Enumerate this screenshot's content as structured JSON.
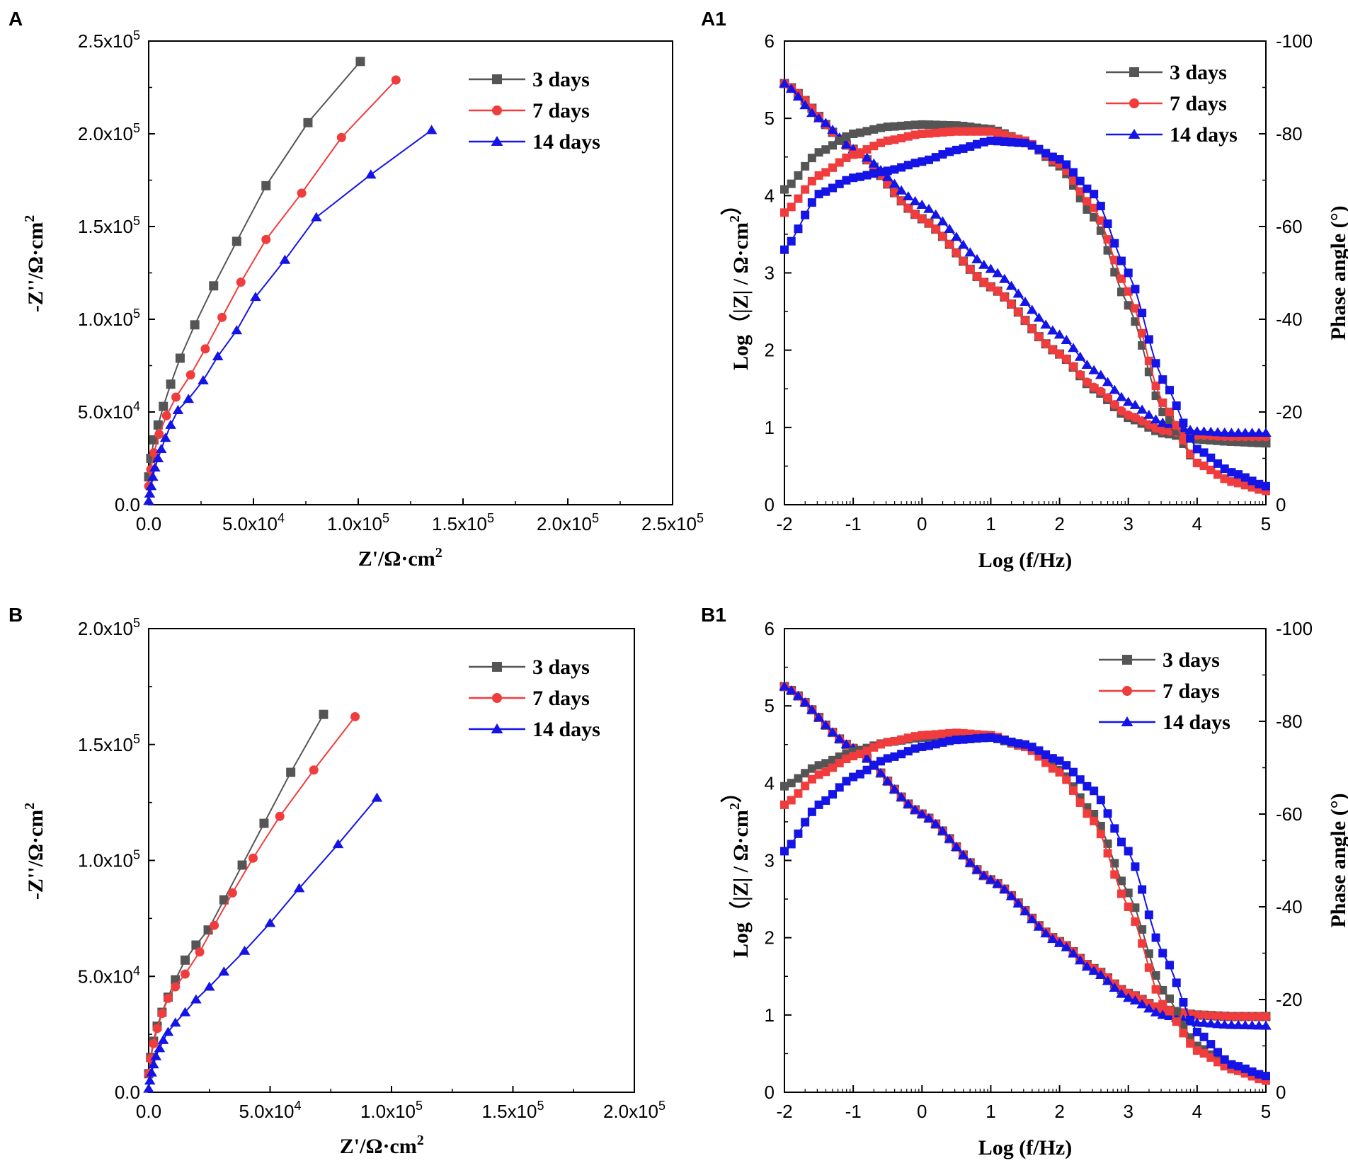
{
  "colors": {
    "s3": "#555555",
    "s7": "#f03c3c",
    "s14": "#1414e6"
  },
  "chart_data": [
    {
      "id": "A",
      "panel_label": "A",
      "type": "scatter",
      "xlabel": "Z'/Ω·cm²",
      "ylabel": "-Z''/Ω·cm²",
      "xlim": [
        0,
        250000
      ],
      "ylim": [
        0,
        250000
      ],
      "xticks": [
        "0.0",
        "5.0x10⁴",
        "1.0x10⁵",
        "1.5x10⁵",
        "2.0x10⁵",
        "2.5x10⁵"
      ],
      "yticks": [
        "0.0",
        "5.0x10⁴",
        "1.0x10⁵",
        "1.5x10⁵",
        "2.0x10⁵",
        "2.5x10⁵"
      ],
      "legend": [
        "3 days",
        "7 days",
        "14 days"
      ],
      "series": [
        {
          "name": "3 days",
          "x": [
            0,
            1000,
            2500,
            4500,
            7000,
            10500,
            15000,
            22000,
            31000,
            42000,
            56000,
            76000,
            101000
          ],
          "y": [
            15000,
            25000,
            35000,
            43000,
            53000,
            65000,
            79000,
            97000,
            118000,
            142000,
            172000,
            206000,
            239000
          ]
        },
        {
          "name": "7 days",
          "x": [
            0,
            1000,
            2500,
            5000,
            8500,
            13000,
            20000,
            27000,
            35000,
            44000,
            56000,
            73000,
            92000,
            118000
          ],
          "y": [
            10000,
            19000,
            28000,
            38000,
            48000,
            58000,
            70000,
            84000,
            101000,
            120000,
            143000,
            168000,
            198000,
            229000
          ]
        },
        {
          "name": "14 days",
          "x": [
            0,
            500,
            1200,
            2000,
            3000,
            4500,
            6000,
            8000,
            10500,
            14000,
            19000,
            26000,
            33000,
            42000,
            51000,
            65000,
            80000,
            106000,
            135000
          ],
          "y": [
            2000,
            6000,
            10000,
            15000,
            20000,
            25000,
            30000,
            36000,
            43000,
            51000,
            57000,
            67000,
            80000,
            94000,
            112000,
            132000,
            155000,
            178000,
            202000
          ]
        }
      ]
    },
    {
      "id": "A1",
      "panel_label": "A1",
      "type": "scatter",
      "xlabel": "Log (f/Hz)",
      "ylabel": "Log（|Z| / Ω·cm²）",
      "y2label": "Phase angle (°)",
      "xlim": [
        -2,
        5
      ],
      "ylim": [
        0,
        6
      ],
      "y2lim": [
        0,
        -100
      ],
      "xticks": [
        "-2",
        "-1",
        "0",
        "1",
        "2",
        "3",
        "4",
        "5"
      ],
      "yticks": [
        "0",
        "1",
        "2",
        "3",
        "4",
        "5",
        "6"
      ],
      "y2ticks": [
        "0",
        "-20",
        "-40",
        "-60",
        "-80",
        "-100"
      ],
      "legend": [
        "3 days",
        "7 days",
        "14 days"
      ],
      "impedance_series": [
        {
          "name": "3 days",
          "x": [
            -2,
            -1,
            0,
            1,
            2,
            2.5,
            3,
            3.5,
            4,
            4.5,
            5
          ],
          "y": [
            5.45,
            4.6,
            3.7,
            2.82,
            1.95,
            1.5,
            1.13,
            0.93,
            0.85,
            0.82,
            0.8
          ]
        },
        {
          "name": "7 days",
          "x": [
            -2,
            -1,
            0,
            1,
            2,
            2.5,
            3,
            3.5,
            4,
            4.5,
            5
          ],
          "y": [
            5.45,
            4.6,
            3.7,
            2.82,
            1.95,
            1.52,
            1.16,
            0.96,
            0.9,
            0.88,
            0.88
          ]
        },
        {
          "name": "14 days",
          "x": [
            -2,
            -1.5,
            -1,
            0,
            1,
            2,
            2.5,
            3,
            3.5,
            4,
            4.5,
            5
          ],
          "y": [
            5.45,
            5.0,
            4.6,
            3.88,
            3.05,
            2.2,
            1.74,
            1.33,
            1.06,
            0.95,
            0.93,
            0.93
          ]
        }
      ],
      "phase_series": [
        {
          "name": "3 days",
          "x": [
            -2,
            -1.5,
            -1,
            -0.5,
            0,
            0.5,
            1,
            1.5,
            2,
            2.5,
            3,
            3.5,
            4,
            4.5,
            5
          ],
          "y": [
            -68,
            -76,
            -80,
            -81.5,
            -82,
            -81.8,
            -81,
            -78.5,
            -73,
            -62,
            -43,
            -20,
            -9,
            -5,
            -3
          ]
        },
        {
          "name": "7 days",
          "x": [
            -2,
            -1.5,
            -1,
            -0.5,
            0,
            0.5,
            1,
            1.5,
            2,
            2.5,
            3,
            3.5,
            4,
            4.5,
            5
          ],
          "y": [
            -63,
            -71,
            -75.5,
            -78.5,
            -80,
            -80.5,
            -80.5,
            -78.5,
            -73.5,
            -64,
            -46,
            -22,
            -9,
            -5,
            -3
          ]
        },
        {
          "name": "14 days",
          "x": [
            -2,
            -1.5,
            -1,
            -0.5,
            0,
            0.5,
            1,
            1.5,
            2,
            2.5,
            3,
            3.5,
            4,
            4.5,
            5
          ],
          "y": [
            -55,
            -67,
            -70.5,
            -72,
            -74,
            -76.5,
            -78.5,
            -78,
            -74.5,
            -67,
            -50,
            -27,
            -12,
            -7,
            -4
          ]
        }
      ]
    },
    {
      "id": "B",
      "panel_label": "B",
      "type": "scatter",
      "xlabel": "Z'/Ω·cm²",
      "ylabel": "-Z''/Ω·cm²",
      "xlim": [
        0,
        200000
      ],
      "ylim": [
        0,
        200000
      ],
      "xticks": [
        "0.0",
        "5.0x10⁴",
        "1.0x10⁵",
        "1.5x10⁵",
        "2.0x10⁵"
      ],
      "yticks": [
        "0.0",
        "5.0x10⁴",
        "1.0x10⁵",
        "1.5x10⁵",
        "2.0x10⁵"
      ],
      "legend": [
        "3 days",
        "7 days",
        "14 days"
      ],
      "series": [
        {
          "name": "3 days",
          "x": [
            0,
            800,
            2000,
            3500,
            5500,
            8000,
            11000,
            15000,
            19500,
            24500,
            31000,
            38500,
            47500,
            58500,
            72000
          ],
          "y": [
            8000,
            15000,
            22000,
            28500,
            34500,
            41000,
            48500,
            57000,
            63500,
            70000,
            83000,
            98000,
            116000,
            138000,
            163000
          ]
        },
        {
          "name": "7 days",
          "x": [
            0,
            800,
            2000,
            3500,
            5500,
            8000,
            11000,
            15000,
            21000,
            27000,
            34500,
            43000,
            54000,
            68000,
            85000
          ],
          "y": [
            8000,
            14500,
            21000,
            27500,
            34000,
            40500,
            45500,
            51000,
            60500,
            72000,
            86000,
            101000,
            119000,
            139000,
            162000
          ]
        },
        {
          "name": "14 days",
          "x": [
            0,
            500,
            1200,
            2000,
            3000,
            4500,
            6000,
            8000,
            11000,
            15000,
            19500,
            25000,
            31000,
            39500,
            50000,
            62000,
            78000,
            94000
          ],
          "y": [
            1500,
            5000,
            8500,
            12000,
            15500,
            19000,
            22500,
            26000,
            30000,
            34500,
            40000,
            45500,
            52000,
            61000,
            73000,
            88000,
            107000,
            127000
          ]
        }
      ]
    },
    {
      "id": "B1",
      "panel_label": "B1",
      "type": "scatter",
      "xlabel": "Log (f/Hz)",
      "ylabel": "Log（|Z| / Ω·cm²）",
      "y2label": "Phase angle (°)",
      "xlim": [
        -2,
        5
      ],
      "ylim": [
        0,
        6
      ],
      "y2lim": [
        0,
        -100
      ],
      "xticks": [
        "-2",
        "-1",
        "0",
        "1",
        "2",
        "3",
        "4",
        "5"
      ],
      "yticks": [
        "0",
        "1",
        "2",
        "3",
        "4",
        "5",
        "6"
      ],
      "y2ticks": [
        "0",
        "-20",
        "-40",
        "-60",
        "-80",
        "-100"
      ],
      "legend": [
        "3 days",
        "7 days",
        "14 days"
      ],
      "impedance_series": [
        {
          "name": "3 days",
          "x": [
            -2,
            -1,
            0,
            1,
            2,
            2.5,
            3,
            3.5,
            4,
            4.5,
            5
          ],
          "y": [
            5.25,
            4.45,
            3.6,
            2.75,
            1.95,
            1.6,
            1.28,
            1.07,
            1.0,
            0.98,
            0.98
          ]
        },
        {
          "name": "7 days",
          "x": [
            -2,
            -1,
            0,
            1,
            2,
            2.5,
            3,
            3.5,
            4,
            4.5,
            5
          ],
          "y": [
            5.25,
            4.45,
            3.6,
            2.75,
            1.95,
            1.6,
            1.28,
            1.07,
            1.0,
            0.98,
            0.98
          ]
        },
        {
          "name": "14 days",
          "x": [
            -2,
            -1,
            0,
            1,
            2,
            2.5,
            3,
            3.5,
            4,
            4.5,
            5
          ],
          "y": [
            5.25,
            4.45,
            3.6,
            2.75,
            1.93,
            1.57,
            1.22,
            1.0,
            0.9,
            0.87,
            0.86
          ]
        }
      ],
      "phase_series": [
        {
          "name": "3 days",
          "x": [
            -2,
            -1.5,
            -1,
            -0.5,
            0,
            0.5,
            1,
            1.5,
            2,
            2.5,
            3,
            3.5,
            4,
            4.5,
            5
          ],
          "y": [
            -66,
            -70.5,
            -73.5,
            -75.5,
            -76.5,
            -77,
            -76.5,
            -74.5,
            -69.5,
            -60,
            -43,
            -22,
            -10,
            -5,
            -3
          ]
        },
        {
          "name": "7 days",
          "x": [
            -2,
            -1.5,
            -1,
            -0.5,
            0,
            0.5,
            1,
            1.5,
            2,
            2.5,
            3,
            3.5,
            4,
            4.5,
            5
          ],
          "y": [
            -62,
            -68.5,
            -72.5,
            -75.5,
            -77,
            -77.5,
            -77,
            -74.5,
            -69,
            -58.5,
            -40,
            -19,
            -9,
            -5,
            -2.5
          ]
        },
        {
          "name": "14 days",
          "x": [
            -2,
            -1.5,
            -1,
            -0.5,
            0,
            0.5,
            1,
            1.5,
            2,
            2.5,
            3,
            3.5,
            4,
            4.5,
            5
          ],
          "y": [
            -52,
            -62,
            -68,
            -72,
            -74.5,
            -76,
            -76.5,
            -75,
            -71.5,
            -65,
            -52,
            -30,
            -13,
            -6,
            -3.5
          ]
        }
      ]
    }
  ]
}
